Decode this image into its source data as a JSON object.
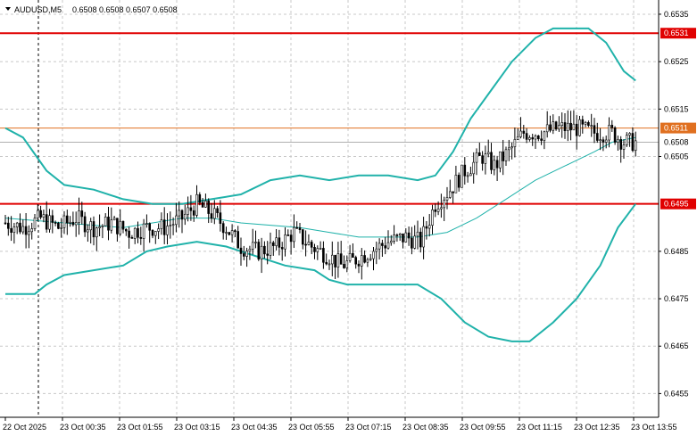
{
  "header": {
    "symbol": "AUDUSD,M5",
    "ohlc": "0.6508 0.6508 0.6507 0.6508"
  },
  "colors": {
    "background": "#ffffff",
    "grid": "#c8c8c8",
    "candle": "#000000",
    "band": "#20b2aa",
    "resistance_line": "#e00000",
    "orange_line": "#e07020",
    "current_line": "#b0b0b0"
  },
  "chart_data": {
    "type": "candlestick",
    "title": "AUDUSD,M5",
    "ylim": [
      0.645,
      0.6538
    ],
    "y_ticks": [
      "0.6535",
      "0.6525",
      "0.6515",
      "0.6505",
      "0.6485",
      "0.6475",
      "0.6465",
      "0.6455"
    ],
    "x_ticks": [
      "22 Oct 2025",
      "23 Oct 00:35",
      "23 Oct 01:55",
      "23 Oct 03:15",
      "23 Oct 04:35",
      "23 Oct 05:55",
      "23 Oct 07:15",
      "23 Oct 08:35",
      "23 Oct 09:55",
      "23 Oct 11:15",
      "23 Oct 12:35",
      "23 Oct 13:55"
    ],
    "x_start": "22 Oct 2025 23:55",
    "x_end": "23 Oct 13:55",
    "grid": true,
    "horizontal_levels": [
      {
        "label": "0.6531",
        "value": 0.6531,
        "color": "#e00000"
      },
      {
        "label": "0.6511",
        "value": 0.6511,
        "color": "#e07020"
      },
      {
        "label": "0.6495",
        "value": 0.6495,
        "color": "#e00000"
      }
    ],
    "current_price": {
      "label": "0.6508",
      "value": 0.6508
    },
    "price_anchors": [
      [
        0,
        0.6491
      ],
      [
        6,
        0.649
      ],
      [
        12,
        0.6492
      ],
      [
        18,
        0.649
      ],
      [
        24,
        0.6492
      ],
      [
        30,
        0.649
      ],
      [
        36,
        0.6491
      ],
      [
        42,
        0.6489
      ],
      [
        48,
        0.649
      ],
      [
        54,
        0.649
      ],
      [
        60,
        0.6492
      ],
      [
        65,
        0.6495
      ],
      [
        70,
        0.6493
      ],
      [
        75,
        0.649
      ],
      [
        80,
        0.6486
      ],
      [
        86,
        0.6485
      ],
      [
        92,
        0.6486
      ],
      [
        98,
        0.6489
      ],
      [
        104,
        0.6486
      ],
      [
        110,
        0.6484
      ],
      [
        114,
        0.6482
      ],
      [
        118,
        0.6483
      ],
      [
        124,
        0.6485
      ],
      [
        130,
        0.6487
      ],
      [
        136,
        0.6488
      ],
      [
        141,
        0.6487
      ],
      [
        146,
        0.6495
      ],
      [
        151,
        0.6498
      ],
      [
        156,
        0.6502
      ],
      [
        162,
        0.6505
      ],
      [
        166,
        0.6503
      ],
      [
        171,
        0.6506
      ],
      [
        176,
        0.651
      ],
      [
        182,
        0.651
      ],
      [
        188,
        0.6511
      ],
      [
        194,
        0.6511
      ],
      [
        200,
        0.651
      ],
      [
        206,
        0.651
      ],
      [
        210,
        0.6508
      ],
      [
        214,
        0.6508
      ]
    ],
    "series": [
      {
        "name": "Upper band",
        "type": "line",
        "points": [
          [
            0,
            0.6511
          ],
          [
            6,
            0.6509
          ],
          [
            14,
            0.6502
          ],
          [
            20,
            0.6499
          ],
          [
            30,
            0.6498
          ],
          [
            40,
            0.6496
          ],
          [
            50,
            0.6495
          ],
          [
            60,
            0.6495
          ],
          [
            70,
            0.6496
          ],
          [
            80,
            0.6497
          ],
          [
            90,
            0.65
          ],
          [
            100,
            0.6501
          ],
          [
            110,
            0.65
          ],
          [
            120,
            0.6501
          ],
          [
            130,
            0.6501
          ],
          [
            140,
            0.65
          ],
          [
            146,
            0.6501
          ],
          [
            152,
            0.6506
          ],
          [
            158,
            0.6513
          ],
          [
            165,
            0.6519
          ],
          [
            172,
            0.6525
          ],
          [
            180,
            0.653
          ],
          [
            186,
            0.6532
          ],
          [
            190,
            0.6532
          ],
          [
            198,
            0.6532
          ],
          [
            204,
            0.6529
          ],
          [
            210,
            0.6523
          ],
          [
            214,
            0.6521
          ]
        ]
      },
      {
        "name": "Middle band",
        "type": "line",
        "points": [
          [
            0,
            0.6492
          ],
          [
            20,
            0.6491
          ],
          [
            40,
            0.649
          ],
          [
            50,
            0.6491
          ],
          [
            60,
            0.6492
          ],
          [
            70,
            0.6492
          ],
          [
            80,
            0.6491
          ],
          [
            100,
            0.649
          ],
          [
            110,
            0.6489
          ],
          [
            120,
            0.6488
          ],
          [
            140,
            0.6488
          ],
          [
            150,
            0.6489
          ],
          [
            160,
            0.6492
          ],
          [
            170,
            0.6496
          ],
          [
            180,
            0.65
          ],
          [
            190,
            0.6503
          ],
          [
            200,
            0.6506
          ],
          [
            206,
            0.6508
          ],
          [
            214,
            0.6509
          ]
        ]
      },
      {
        "name": "Lower band",
        "type": "line",
        "points": [
          [
            0,
            0.6476
          ],
          [
            10,
            0.6476
          ],
          [
            14,
            0.6478
          ],
          [
            20,
            0.648
          ],
          [
            30,
            0.6481
          ],
          [
            40,
            0.6482
          ],
          [
            48,
            0.6485
          ],
          [
            55,
            0.6486
          ],
          [
            65,
            0.6487
          ],
          [
            75,
            0.6486
          ],
          [
            85,
            0.6484
          ],
          [
            95,
            0.6482
          ],
          [
            105,
            0.6481
          ],
          [
            110,
            0.6479
          ],
          [
            116,
            0.6478
          ],
          [
            130,
            0.6478
          ],
          [
            140,
            0.6478
          ],
          [
            148,
            0.6475
          ],
          [
            156,
            0.647
          ],
          [
            164,
            0.6467
          ],
          [
            172,
            0.6466
          ],
          [
            178,
            0.6466
          ],
          [
            186,
            0.647
          ],
          [
            194,
            0.6475
          ],
          [
            202,
            0.6482
          ],
          [
            208,
            0.649
          ],
          [
            214,
            0.6495
          ]
        ]
      }
    ]
  }
}
